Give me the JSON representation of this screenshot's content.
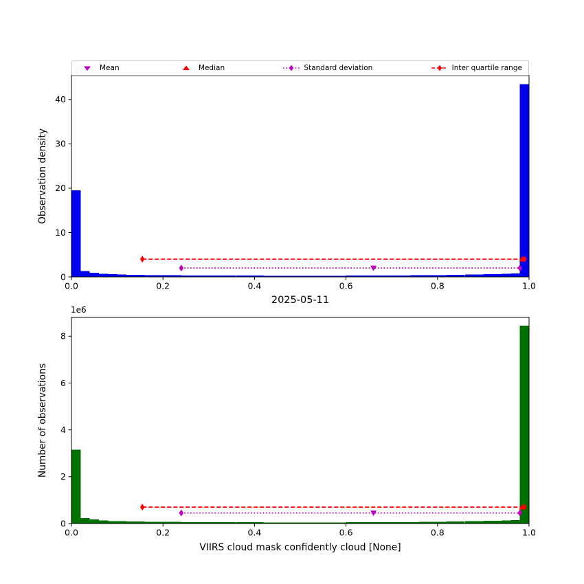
{
  "figure": {
    "background": "#ffffff"
  },
  "legend": {
    "items": [
      {
        "label": "Mean",
        "marker": "triangle-down",
        "color": "#bf00bf",
        "linestyle": "none"
      },
      {
        "label": "Median",
        "marker": "triangle-up",
        "color": "#ff0000",
        "linestyle": "none"
      },
      {
        "label": "Standard deviation",
        "marker": "thin-diamond",
        "color": "#bf00bf",
        "linestyle": "dotted"
      },
      {
        "label": "Inter quartile range",
        "marker": "thin-diamond",
        "color": "#ff0000",
        "linestyle": "dashed"
      }
    ]
  },
  "chart_data": [
    {
      "id": "density-histogram",
      "type": "bar",
      "title": "",
      "xlabel": "",
      "ylabel": "Observation density",
      "offset_text": "",
      "bar_color": "#0000ee",
      "xlim": [
        0.0,
        1.0
      ],
      "ylim": [
        0,
        45.4
      ],
      "xticks": [
        "0.0",
        "0.2",
        "0.4",
        "0.6",
        "0.8",
        "1.0"
      ],
      "xtick_values": [
        0.0,
        0.2,
        0.4,
        0.6,
        0.8,
        1.0
      ],
      "yticks": [
        "0",
        "10",
        "20",
        "30",
        "40"
      ],
      "ytick_values": [
        0,
        10,
        20,
        30,
        40
      ],
      "bins": {
        "start": 0.0,
        "width": 0.02
      },
      "values": [
        19.5,
        1.3,
        0.9,
        0.7,
        0.6,
        0.55,
        0.5,
        0.45,
        0.42,
        0.4,
        0.38,
        0.36,
        0.34,
        0.33,
        0.32,
        0.31,
        0.3,
        0.3,
        0.29,
        0.28,
        0.28,
        0.27,
        0.27,
        0.26,
        0.26,
        0.26,
        0.26,
        0.26,
        0.27,
        0.27,
        0.28,
        0.28,
        0.29,
        0.3,
        0.31,
        0.32,
        0.33,
        0.35,
        0.37,
        0.39,
        0.42,
        0.45,
        0.48,
        0.52,
        0.56,
        0.6,
        0.65,
        0.72,
        0.8,
        43.5
      ],
      "stats": {
        "mean": {
          "x": 0.66,
          "y": 2.0,
          "color": "#bf00bf"
        },
        "median": {
          "x": 0.985,
          "y": 4.0,
          "color": "#ff0000"
        },
        "std_range": {
          "x1": 0.24,
          "x2": 0.98,
          "y": 2.0,
          "color": "#bf00bf"
        },
        "iqr_range": {
          "x1": 0.155,
          "x2": 0.99,
          "y": 4.0,
          "color": "#ff0000"
        }
      }
    },
    {
      "id": "count-histogram",
      "type": "bar",
      "title": "2025-05-11",
      "xlabel": "VIIRS cloud mask confidently cloud [None]",
      "ylabel": "Number of observations",
      "offset_text": "1e6",
      "values_unit": "1e6",
      "bar_color": "#007000",
      "xlim": [
        0.0,
        1.0
      ],
      "ylim": [
        0,
        8.8
      ],
      "xticks": [
        "0.0",
        "0.2",
        "0.4",
        "0.6",
        "0.8",
        "1.0"
      ],
      "xtick_values": [
        0.0,
        0.2,
        0.4,
        0.6,
        0.8,
        1.0
      ],
      "yticks": [
        "0",
        "2",
        "4",
        "6",
        "8"
      ],
      "ytick_values": [
        0,
        2,
        4,
        6,
        8
      ],
      "bins": {
        "start": 0.0,
        "width": 0.02
      },
      "values": [
        3.15,
        0.24,
        0.17,
        0.13,
        0.11,
        0.1,
        0.09,
        0.085,
        0.08,
        0.075,
        0.07,
        0.067,
        0.064,
        0.062,
        0.06,
        0.058,
        0.056,
        0.056,
        0.054,
        0.052,
        0.052,
        0.05,
        0.05,
        0.048,
        0.048,
        0.048,
        0.048,
        0.048,
        0.05,
        0.05,
        0.052,
        0.052,
        0.054,
        0.056,
        0.058,
        0.06,
        0.062,
        0.065,
        0.069,
        0.073,
        0.078,
        0.084,
        0.09,
        0.097,
        0.104,
        0.112,
        0.121,
        0.134,
        0.149,
        8.45
      ],
      "stats": {
        "mean": {
          "x": 0.66,
          "y": 0.45,
          "color": "#bf00bf"
        },
        "median": {
          "x": 0.985,
          "y": 0.7,
          "color": "#ff0000"
        },
        "std_range": {
          "x1": 0.24,
          "x2": 0.98,
          "y": 0.45,
          "color": "#bf00bf"
        },
        "iqr_range": {
          "x1": 0.155,
          "x2": 0.99,
          "y": 0.7,
          "color": "#ff0000"
        }
      }
    }
  ]
}
